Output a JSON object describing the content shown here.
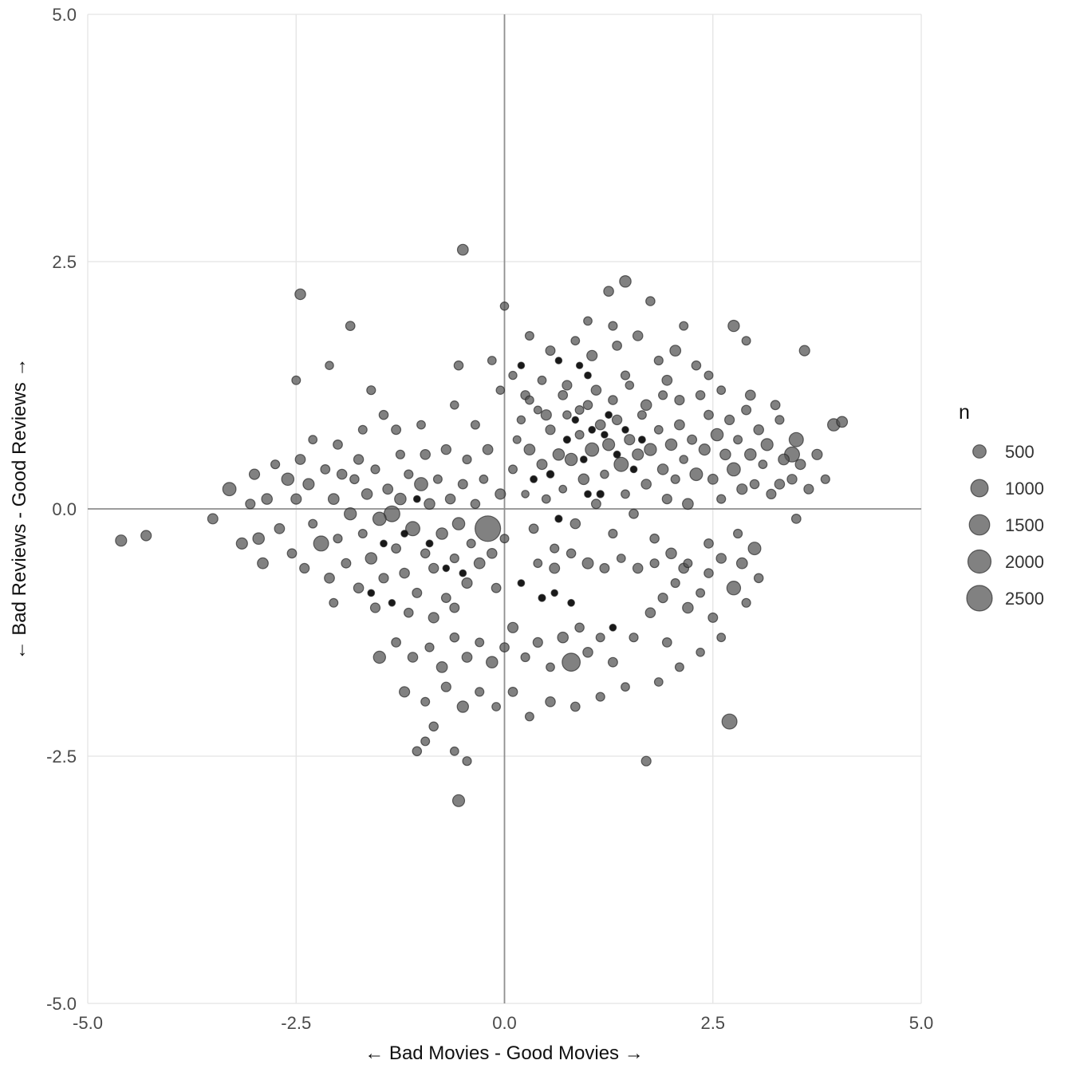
{
  "chart_data": {
    "type": "scatter",
    "title": "",
    "xlabel": "← Bad Movies - Good Movies →",
    "ylabel": "← Bad Reviews - Good Reviews →",
    "xlim": [
      -5.0,
      5.0
    ],
    "ylim": [
      -5.0,
      5.0
    ],
    "x_ticks": [
      {
        "v": -5.0,
        "label": "-5.0"
      },
      {
        "v": -2.5,
        "label": "-2.5"
      },
      {
        "v": 0.0,
        "label": "0.0"
      },
      {
        "v": 2.5,
        "label": "2.5"
      },
      {
        "v": 5.0,
        "label": "5.0"
      }
    ],
    "y_ticks": [
      {
        "v": -5.0,
        "label": "-5.0"
      },
      {
        "v": -2.5,
        "label": "-2.5"
      },
      {
        "v": 0.0,
        "label": "0.0"
      },
      {
        "v": 2.5,
        "label": "2.5"
      },
      {
        "v": 5.0,
        "label": "5.0"
      }
    ],
    "grid": true,
    "zero_lines": true,
    "legend": {
      "title": "n",
      "sizes": [
        500,
        1000,
        1500,
        2000,
        2500
      ],
      "position": "right"
    },
    "colors": {
      "point_fill": "rgba(80,80,80,0.72)",
      "point_stroke": "rgba(30,30,30,0.65)",
      "dark_point_fill": "rgba(5,5,5,0.92)",
      "grid_line": "#e4e4e4",
      "zero_line": "#8f8f8f",
      "background": "#ffffff"
    },
    "points": [
      [
        0.1,
        0.4,
        150
      ],
      [
        0.2,
        0.9,
        120
      ],
      [
        0.25,
        0.15,
        90
      ],
      [
        0.3,
        0.6,
        300
      ],
      [
        0.35,
        -0.2,
        180
      ],
      [
        0.4,
        1.0,
        110
      ],
      [
        0.45,
        0.45,
        250
      ],
      [
        0.5,
        0.1,
        140
      ],
      [
        0.55,
        0.8,
        200
      ],
      [
        0.6,
        -0.4,
        160
      ],
      [
        0.65,
        0.55,
        340
      ],
      [
        0.7,
        0.2,
        100
      ],
      [
        0.75,
        0.95,
        130
      ],
      [
        0.8,
        0.5,
        420
      ],
      [
        0.85,
        -0.15,
        220
      ],
      [
        0.9,
        0.75,
        150
      ],
      [
        0.95,
        0.3,
        280
      ],
      [
        1.0,
        1.05,
        170
      ],
      [
        1.05,
        0.6,
        520
      ],
      [
        1.1,
        0.05,
        190
      ],
      [
        1.15,
        0.85,
        240
      ],
      [
        1.2,
        0.35,
        130
      ],
      [
        1.25,
        0.65,
        380
      ],
      [
        1.3,
        -0.25,
        160
      ],
      [
        1.35,
        0.9,
        210
      ],
      [
        1.4,
        0.45,
        600
      ],
      [
        1.45,
        0.15,
        140
      ],
      [
        1.5,
        0.7,
        260
      ],
      [
        1.55,
        -0.05,
        180
      ],
      [
        1.6,
        0.55,
        320
      ],
      [
        1.65,
        0.95,
        150
      ],
      [
        1.7,
        0.25,
        230
      ],
      [
        1.75,
        0.6,
        400
      ],
      [
        1.8,
        -0.3,
        170
      ],
      [
        1.85,
        0.8,
        140
      ],
      [
        1.9,
        0.4,
        280
      ],
      [
        1.95,
        0.1,
        200
      ],
      [
        2.0,
        0.65,
        350
      ],
      [
        2.05,
        0.3,
        160
      ],
      [
        2.1,
        0.85,
        240
      ],
      [
        2.15,
        0.5,
        130
      ],
      [
        2.2,
        0.05,
        300
      ],
      [
        2.25,
        0.7,
        190
      ],
      [
        2.3,
        0.35,
        450
      ],
      [
        0.15,
        0.7,
        110
      ],
      [
        0.3,
        1.1,
        140
      ],
      [
        0.5,
        0.95,
        260
      ],
      [
        0.7,
        1.15,
        180
      ],
      [
        0.9,
        1.0,
        150
      ],
      [
        1.1,
        1.2,
        220
      ],
      [
        1.3,
        1.1,
        170
      ],
      [
        1.5,
        1.25,
        130
      ],
      [
        1.7,
        1.05,
        280
      ],
      [
        1.9,
        1.15,
        160
      ],
      [
        2.1,
        1.1,
        200
      ],
      [
        0.4,
        -0.55,
        140
      ],
      [
        0.6,
        -0.6,
        250
      ],
      [
        0.8,
        -0.45,
        170
      ],
      [
        1.0,
        -0.55,
        310
      ],
      [
        1.2,
        -0.6,
        190
      ],
      [
        1.4,
        -0.5,
        140
      ],
      [
        1.6,
        -0.6,
        230
      ],
      [
        1.8,
        -0.55,
        160
      ],
      [
        2.0,
        -0.45,
        280
      ],
      [
        2.2,
        -0.55,
        150
      ],
      [
        0.55,
        0.35,
        90,
        1
      ],
      [
        0.75,
        0.7,
        80,
        1
      ],
      [
        0.95,
        0.5,
        70,
        1
      ],
      [
        1.15,
        0.15,
        85,
        1
      ],
      [
        1.35,
        0.55,
        75,
        1
      ],
      [
        0.85,
        0.9,
        60,
        1
      ],
      [
        1.05,
        0.8,
        70,
        1
      ],
      [
        1.25,
        0.95,
        65,
        1
      ],
      [
        0.65,
        -0.1,
        80,
        1
      ],
      [
        1.45,
        0.8,
        60,
        1
      ],
      [
        1.55,
        0.4,
        70,
        1
      ],
      [
        0.35,
        0.3,
        75,
        1
      ],
      [
        1.0,
        0.15,
        65,
        1
      ],
      [
        1.2,
        0.75,
        60,
        1
      ],
      [
        1.65,
        0.7,
        75,
        1
      ],
      [
        2.4,
        0.6,
        320
      ],
      [
        2.45,
        0.95,
        180
      ],
      [
        2.5,
        0.3,
        240
      ],
      [
        2.55,
        0.75,
        420
      ],
      [
        2.6,
        0.1,
        160
      ],
      [
        2.65,
        0.55,
        280
      ],
      [
        2.7,
        0.9,
        200
      ],
      [
        2.75,
        0.4,
        500
      ],
      [
        2.8,
        0.7,
        150
      ],
      [
        2.85,
        0.2,
        260
      ],
      [
        2.9,
        1.0,
        190
      ],
      [
        2.95,
        0.55,
        340
      ],
      [
        3.0,
        0.25,
        170
      ],
      [
        3.05,
        0.8,
        230
      ],
      [
        3.1,
        0.45,
        140
      ],
      [
        3.15,
        0.65,
        380
      ],
      [
        3.2,
        0.15,
        200
      ],
      [
        3.3,
        0.9,
        160
      ],
      [
        3.35,
        0.5,
        290
      ],
      [
        3.45,
        0.3,
        210
      ],
      [
        3.5,
        0.7,
        600
      ],
      [
        3.55,
        0.45,
        250
      ],
      [
        2.45,
        -0.35,
        180
      ],
      [
        2.6,
        -0.5,
        220
      ],
      [
        2.8,
        -0.25,
        160
      ],
      [
        3.0,
        -0.4,
        450
      ],
      [
        2.35,
        1.15,
        170
      ],
      [
        2.6,
        1.2,
        140
      ],
      [
        2.95,
        1.15,
        240
      ],
      [
        3.25,
        1.05,
        180
      ],
      [
        -0.5,
        2.62,
        300
      ],
      [
        -2.45,
        2.17,
        280
      ],
      [
        1.45,
        2.3,
        340
      ],
      [
        1.25,
        2.2,
        230
      ],
      [
        1.75,
        2.1,
        170
      ],
      [
        0.3,
        1.75,
        150
      ],
      [
        0.55,
        1.6,
        190
      ],
      [
        0.85,
        1.7,
        140
      ],
      [
        1.05,
        1.55,
        260
      ],
      [
        1.35,
        1.65,
        180
      ],
      [
        1.6,
        1.75,
        220
      ],
      [
        1.85,
        1.5,
        160
      ],
      [
        2.05,
        1.6,
        300
      ],
      [
        2.3,
        1.45,
        170
      ],
      [
        2.75,
        1.85,
        330
      ],
      [
        2.9,
        1.7,
        150
      ],
      [
        3.6,
        1.6,
        260
      ],
      [
        -0.15,
        1.5,
        140
      ],
      [
        -0.55,
        1.45,
        170
      ],
      [
        0.1,
        1.35,
        120
      ],
      [
        -1.85,
        1.85,
        180
      ],
      [
        0.0,
        2.05,
        130
      ],
      [
        0.2,
        1.45,
        60,
        1
      ],
      [
        1.0,
        1.35,
        65,
        1
      ],
      [
        -3.5,
        -0.1,
        250
      ],
      [
        -3.3,
        0.2,
        500
      ],
      [
        -3.15,
        -0.35,
        320
      ],
      [
        -3.0,
        0.35,
        260
      ],
      [
        -2.9,
        -0.55,
        300
      ],
      [
        -2.85,
        0.1,
        280
      ],
      [
        -2.7,
        -0.2,
        240
      ],
      [
        -2.95,
        -0.3,
        350
      ],
      [
        -3.05,
        0.05,
        200
      ],
      [
        -2.6,
        0.3,
        420
      ],
      [
        -2.55,
        -0.45,
        180
      ],
      [
        -2.5,
        0.1,
        260
      ],
      [
        -2.4,
        -0.6,
        200
      ],
      [
        -2.35,
        0.25,
        320
      ],
      [
        -2.3,
        -0.15,
        150
      ],
      [
        -2.2,
        -0.35,
        700
      ],
      [
        -2.15,
        0.4,
        180
      ],
      [
        -2.1,
        -0.7,
        240
      ],
      [
        -2.05,
        0.1,
        300
      ],
      [
        -2.0,
        -0.3,
        160
      ],
      [
        -1.95,
        0.35,
        220
      ],
      [
        -1.9,
        -0.55,
        190
      ],
      [
        -1.85,
        -0.05,
        400
      ],
      [
        -1.8,
        0.3,
        170
      ],
      [
        -1.75,
        -0.8,
        230
      ],
      [
        -1.7,
        -0.25,
        150
      ],
      [
        -1.65,
        0.15,
        280
      ],
      [
        -1.6,
        -0.5,
        340
      ],
      [
        -1.55,
        0.4,
        160
      ],
      [
        -1.5,
        -0.1,
        500
      ],
      [
        -1.45,
        -0.7,
        200
      ],
      [
        -1.4,
        0.2,
        240
      ],
      [
        -1.35,
        -0.05,
        800
      ],
      [
        -1.3,
        -0.4,
        180
      ],
      [
        -1.25,
        0.1,
        350
      ],
      [
        -1.2,
        -0.65,
        220
      ],
      [
        -1.15,
        0.35,
        160
      ],
      [
        -1.1,
        -0.2,
        600
      ],
      [
        -1.05,
        -0.85,
        190
      ],
      [
        -1.0,
        0.25,
        500
      ],
      [
        -0.95,
        -0.45,
        170
      ],
      [
        -0.9,
        0.05,
        280
      ],
      [
        -0.85,
        -0.6,
        210
      ],
      [
        -0.8,
        0.3,
        150
      ],
      [
        -0.75,
        -0.25,
        340
      ],
      [
        -0.7,
        -0.9,
        180
      ],
      [
        -0.65,
        0.1,
        230
      ],
      [
        -0.6,
        -0.5,
        160
      ],
      [
        -0.55,
        -0.15,
        420
      ],
      [
        -0.5,
        0.25,
        190
      ],
      [
        -0.45,
        -0.75,
        260
      ],
      [
        -0.4,
        -0.35,
        150
      ],
      [
        -0.2,
        -0.2,
        2500
      ],
      [
        -0.35,
        0.05,
        170
      ],
      [
        -0.3,
        -0.55,
        300
      ],
      [
        -0.25,
        0.3,
        140
      ],
      [
        -0.15,
        -0.45,
        220
      ],
      [
        -0.1,
        -0.8,
        180
      ],
      [
        -0.05,
        0.15,
        260
      ],
      [
        0.0,
        -0.3,
        150
      ],
      [
        -2.75,
        0.45,
        160
      ],
      [
        -2.45,
        0.5,
        240
      ],
      [
        -1.55,
        -1.0,
        200
      ],
      [
        -1.15,
        -1.05,
        170
      ],
      [
        -0.85,
        -1.1,
        260
      ],
      [
        -0.6,
        -1.0,
        190
      ],
      [
        -2.05,
        -0.95,
        150
      ],
      [
        -1.75,
        0.5,
        210
      ],
      [
        -1.25,
        0.55,
        160
      ],
      [
        -0.95,
        0.55,
        230
      ],
      [
        -1.45,
        -0.35,
        70,
        1
      ],
      [
        -1.2,
        -0.25,
        65,
        1
      ],
      [
        -0.9,
        -0.35,
        75,
        1
      ],
      [
        -0.7,
        -0.6,
        60,
        1
      ],
      [
        -1.6,
        -0.85,
        70,
        1
      ],
      [
        -1.05,
        0.1,
        65,
        1
      ],
      [
        -1.35,
        -0.95,
        60,
        1
      ],
      [
        -0.5,
        -0.65,
        70,
        1
      ],
      [
        0.8,
        -1.55,
        1100
      ],
      [
        -1.5,
        -1.5,
        400
      ],
      [
        -1.3,
        -1.35,
        180
      ],
      [
        -1.1,
        -1.5,
        220
      ],
      [
        -0.9,
        -1.4,
        160
      ],
      [
        -0.75,
        -1.6,
        300
      ],
      [
        -0.6,
        -1.3,
        170
      ],
      [
        -0.45,
        -1.5,
        240
      ],
      [
        -0.3,
        -1.35,
        150
      ],
      [
        -0.15,
        -1.55,
        350
      ],
      [
        0.0,
        -1.4,
        180
      ],
      [
        0.1,
        -1.2,
        260
      ],
      [
        0.25,
        -1.5,
        160
      ],
      [
        0.4,
        -1.35,
        200
      ],
      [
        0.55,
        -1.6,
        140
      ],
      [
        0.7,
        -1.3,
        280
      ],
      [
        0.9,
        -1.2,
        170
      ],
      [
        1.0,
        -1.45,
        230
      ],
      [
        1.15,
        -1.3,
        150
      ],
      [
        1.3,
        -1.55,
        190
      ],
      [
        -1.2,
        -1.85,
        260
      ],
      [
        -0.95,
        -1.95,
        150
      ],
      [
        -0.7,
        -1.8,
        200
      ],
      [
        -0.5,
        -2.0,
        330
      ],
      [
        -0.3,
        -1.85,
        160
      ],
      [
        -0.1,
        -2.0,
        140
      ],
      [
        0.1,
        -1.85,
        180
      ],
      [
        0.3,
        -2.1,
        150
      ],
      [
        0.55,
        -1.95,
        220
      ],
      [
        -0.85,
        -2.2,
        170
      ],
      [
        -1.05,
        -2.45,
        170
      ],
      [
        -0.95,
        -2.35,
        150
      ],
      [
        -0.55,
        -2.95,
        380
      ],
      [
        -0.45,
        -2.55,
        160
      ],
      [
        -0.6,
        -2.45,
        140
      ],
      [
        1.7,
        -2.55,
        200
      ],
      [
        2.7,
        -2.15,
        700
      ],
      [
        1.15,
        -1.9,
        160
      ],
      [
        1.45,
        -1.8,
        140
      ],
      [
        0.85,
        -2.0,
        180
      ],
      [
        1.3,
        -1.2,
        70,
        1
      ],
      [
        0.45,
        -0.9,
        80,
        1
      ],
      [
        0.8,
        -0.95,
        70,
        1
      ],
      [
        0.2,
        -0.75,
        65,
        1
      ],
      [
        0.6,
        -0.85,
        60,
        1
      ],
      [
        1.9,
        -0.9,
        200
      ],
      [
        2.05,
        -0.75,
        160
      ],
      [
        2.2,
        -1.0,
        280
      ],
      [
        2.35,
        -0.85,
        150
      ],
      [
        2.5,
        -1.1,
        190
      ],
      [
        2.15,
        -0.6,
        240
      ],
      [
        2.45,
        -0.65,
        170
      ],
      [
        2.75,
        -0.8,
        550
      ],
      [
        2.9,
        -0.95,
        160
      ],
      [
        2.6,
        -1.3,
        140
      ],
      [
        1.95,
        -1.35,
        180
      ],
      [
        2.1,
        -1.6,
        150
      ],
      [
        1.75,
        -1.05,
        220
      ],
      [
        2.85,
        -0.55,
        300
      ],
      [
        3.05,
        -0.7,
        170
      ],
      [
        2.35,
        -1.45,
        130
      ],
      [
        1.55,
        -1.3,
        160
      ],
      [
        1.85,
        -1.75,
        140
      ],
      [
        3.95,
        0.85,
        420
      ],
      [
        4.05,
        0.88,
        300
      ],
      [
        3.75,
        0.55,
        260
      ],
      [
        3.65,
        0.2,
        200
      ],
      [
        3.5,
        -0.1,
        180
      ],
      [
        3.85,
        0.3,
        160
      ],
      [
        3.45,
        0.55,
        700
      ],
      [
        3.3,
        0.25,
        220
      ],
      [
        0.45,
        1.3,
        140
      ],
      [
        0.75,
        1.25,
        200
      ],
      [
        1.45,
        1.35,
        160
      ],
      [
        1.95,
        1.3,
        240
      ],
      [
        2.45,
        1.35,
        150
      ],
      [
        -0.05,
        1.2,
        130
      ],
      [
        0.25,
        1.15,
        170
      ],
      [
        -2.1,
        1.45,
        130
      ],
      [
        -1.6,
        1.2,
        160
      ],
      [
        -1.3,
        0.8,
        190
      ],
      [
        -1.0,
        0.85,
        140
      ],
      [
        -0.7,
        0.6,
        210
      ],
      [
        -0.45,
        0.5,
        160
      ],
      [
        -0.2,
        0.6,
        240
      ],
      [
        -0.35,
        0.85,
        150
      ],
      [
        -0.6,
        1.05,
        130
      ],
      [
        -1.45,
        0.95,
        170
      ],
      [
        -2.3,
        0.7,
        140
      ],
      [
        -2.0,
        0.65,
        180
      ],
      [
        -1.7,
        0.8,
        150
      ],
      [
        -4.6,
        -0.32,
        320
      ],
      [
        -4.3,
        -0.27,
        260
      ],
      [
        -2.5,
        1.3,
        150
      ],
      [
        1.0,
        1.9,
        140
      ],
      [
        1.3,
        1.85,
        160
      ],
      [
        2.15,
        1.85,
        150
      ],
      [
        0.65,
        1.5,
        60,
        1
      ],
      [
        0.9,
        1.45,
        55,
        1
      ]
    ]
  }
}
